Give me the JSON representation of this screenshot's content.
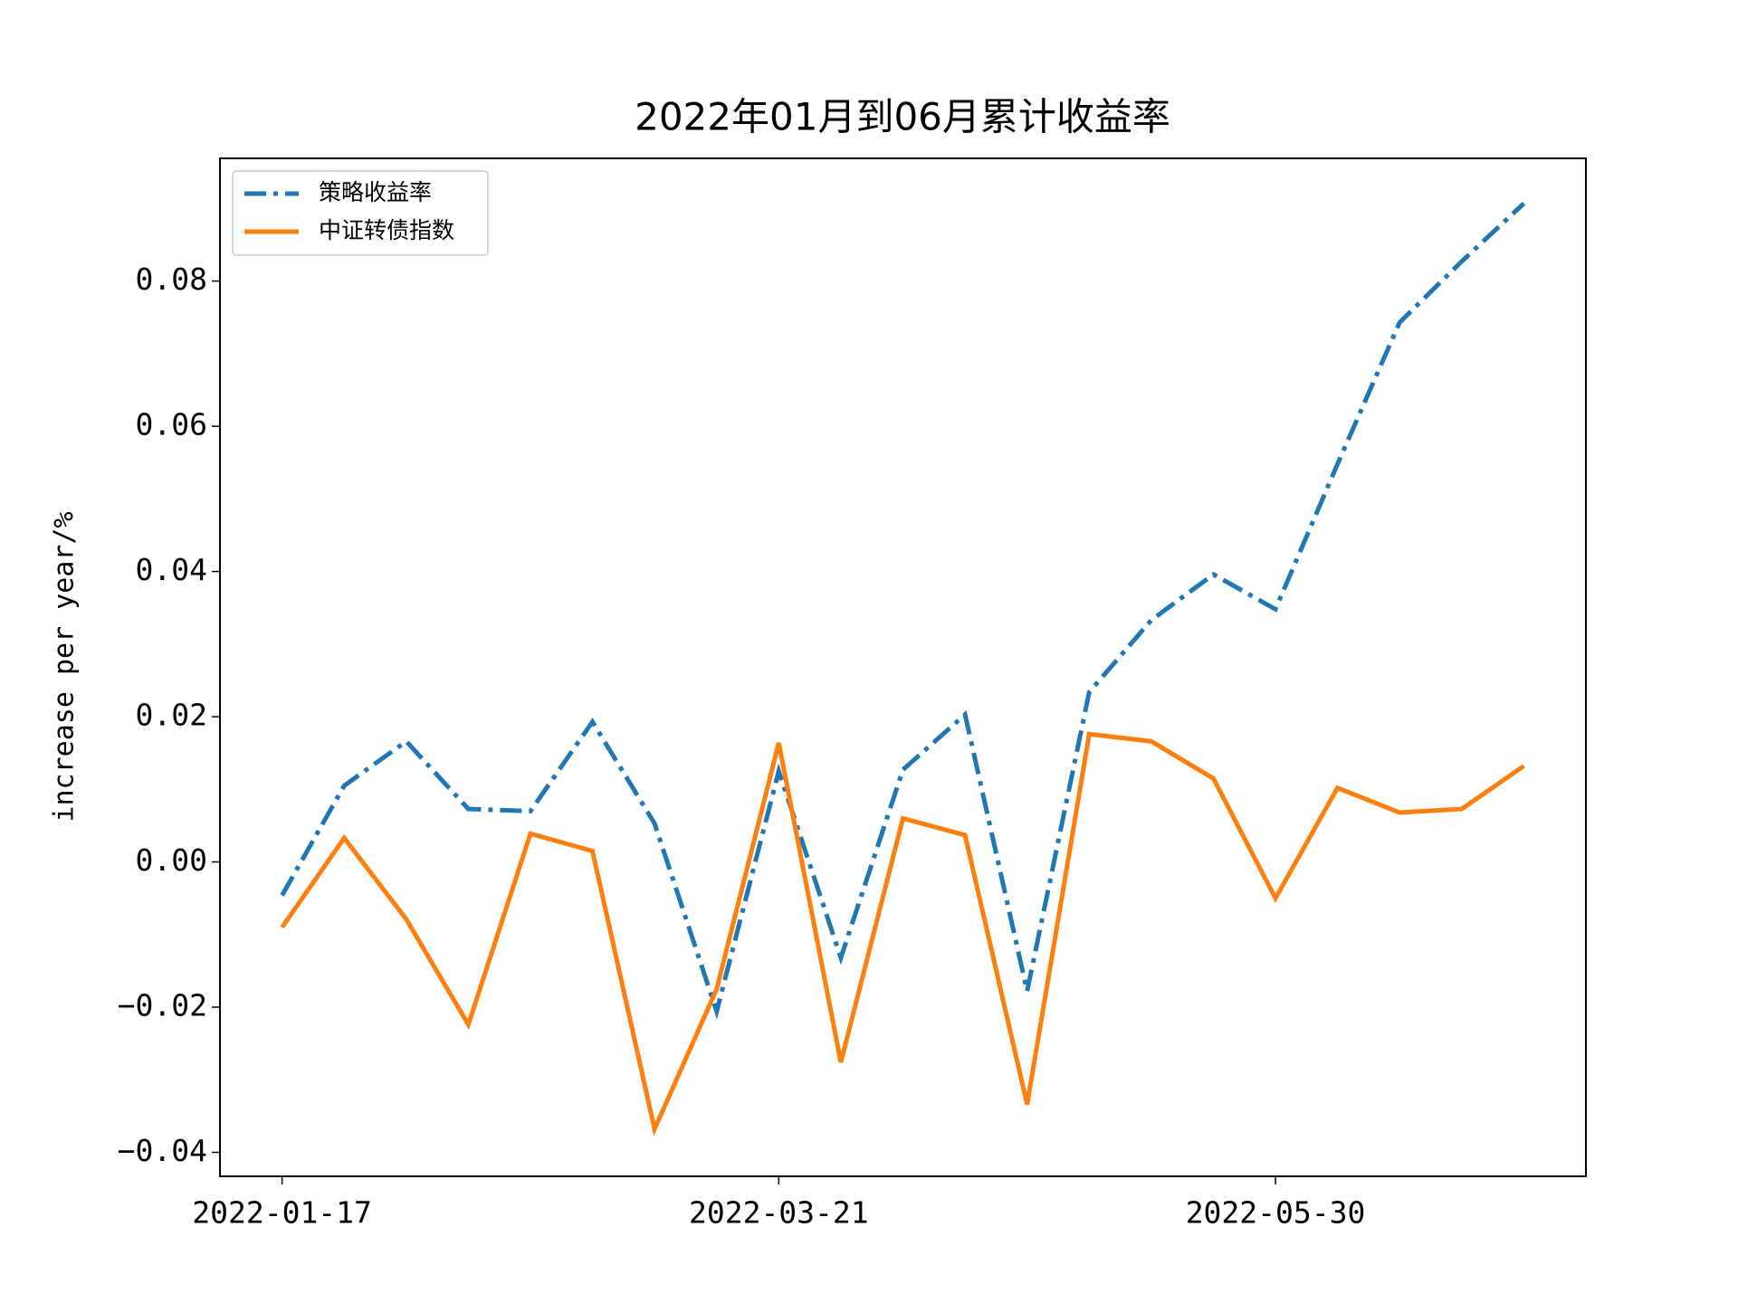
{
  "chart_data": {
    "type": "line",
    "title": "2022年01月到06月累计收益率",
    "ylabel": "increase per year/%",
    "categories": [
      "2022-01-17",
      null,
      null,
      null,
      null,
      null,
      null,
      null,
      "2022-03-21",
      null,
      null,
      null,
      null,
      null,
      null,
      null,
      "2022-05-30",
      null,
      null,
      null,
      null
    ],
    "series": [
      {
        "name": "策略收益率",
        "color": "#1f77b4",
        "style": "dashdot",
        "values": [
          -0.0046,
          0.0105,
          0.0166,
          0.0073,
          0.007,
          0.0193,
          0.0053,
          -0.0206,
          0.0125,
          -0.0132,
          0.0127,
          0.0203,
          -0.0178,
          0.0234,
          0.0333,
          0.0396,
          0.0348,
          0.0548,
          0.0743,
          0.0827,
          0.0907
        ]
      },
      {
        "name": "中证转债指数",
        "color": "#ff7f0e",
        "style": "solid",
        "values": [
          -0.009,
          0.0033,
          -0.0079,
          -0.0224,
          0.0039,
          0.0015,
          -0.0368,
          -0.0175,
          0.0164,
          -0.0276,
          0.006,
          0.0037,
          -0.0334,
          0.0176,
          0.0166,
          0.0115,
          -0.005,
          0.0102,
          0.0068,
          0.0073,
          0.0132
        ]
      }
    ],
    "ylim": [
      -0.0433,
      0.0969
    ],
    "yticks": [
      {
        "value": -0.04,
        "label": "−0.04"
      },
      {
        "value": -0.02,
        "label": "−0.02"
      },
      {
        "value": 0,
        "label": "0.00"
      },
      {
        "value": 0.02,
        "label": "0.02"
      },
      {
        "value": 0.04,
        "label": "0.04"
      },
      {
        "value": 0.06,
        "label": "0.06"
      },
      {
        "value": 0.08,
        "label": "0.08"
      }
    ],
    "legend": "upper left",
    "grid": false
  }
}
